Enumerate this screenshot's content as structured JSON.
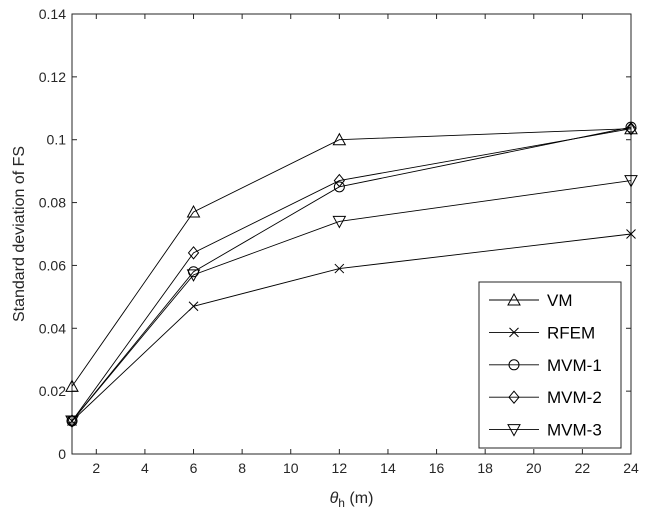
{
  "chart_data": {
    "type": "line",
    "title": "",
    "xlabel": "θh (m)",
    "xlabel_parts": {
      "symbol": "θ",
      "subscript": "h",
      "unit": " (m)"
    },
    "ylabel": "Standard deviation of FS",
    "xlim": [
      1,
      24
    ],
    "ylim": [
      0,
      0.14
    ],
    "x_ticks": [
      2,
      4,
      6,
      8,
      10,
      12,
      14,
      16,
      18,
      20,
      22,
      24
    ],
    "y_ticks": [
      0,
      0.02,
      0.04,
      0.06,
      0.08,
      0.1,
      0.12,
      0.14
    ],
    "y_tick_labels": [
      "0",
      "0.02",
      "0.04",
      "0.06",
      "0.08",
      "0.1",
      "0.12",
      "0.14"
    ],
    "x": [
      1,
      6,
      12,
      24
    ],
    "grid": false,
    "legend_position": "bottom-right",
    "series": [
      {
        "name": "VM",
        "marker": "triangle-up",
        "values": [
          0.0215,
          0.077,
          0.1,
          0.1035
        ]
      },
      {
        "name": "RFEM",
        "marker": "x",
        "values": [
          0.0105,
          0.047,
          0.059,
          0.07
        ]
      },
      {
        "name": "MVM-1",
        "marker": "circle",
        "values": [
          0.0105,
          0.058,
          0.085,
          0.104
        ]
      },
      {
        "name": "MVM-2",
        "marker": "diamond",
        "values": [
          0.0105,
          0.064,
          0.087,
          0.1035
        ]
      },
      {
        "name": "MVM-3",
        "marker": "triangle-down",
        "values": [
          0.0105,
          0.057,
          0.074,
          0.087
        ]
      }
    ],
    "colors": {
      "line": "#000000",
      "axis": "#262626"
    }
  }
}
